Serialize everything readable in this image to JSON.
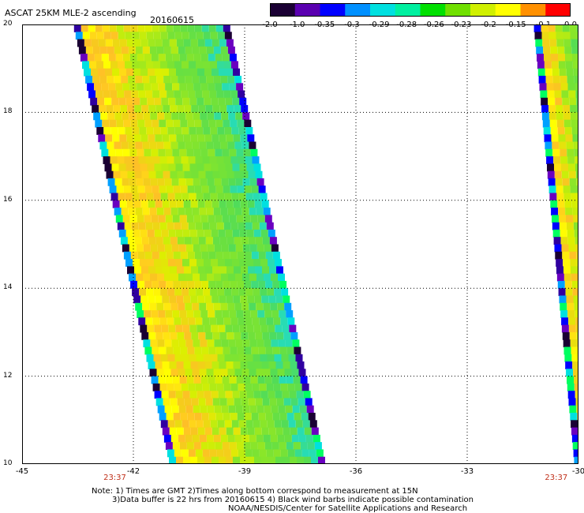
{
  "header": {
    "title": "ASCAT 25KM MLE-2 ascending",
    "date": "20160615"
  },
  "colorbar": {
    "labels": [
      "-2.0",
      "-1.0",
      "-0.35",
      "-0.3",
      "-0.29",
      "-0.28",
      "-0.26",
      "-0.23",
      "-0.2",
      "-0.15",
      "-0.1",
      "0.0"
    ],
    "colors": [
      "#1a0033",
      "#5a00b0",
      "#0000ff",
      "#0090ff",
      "#00e0e0",
      "#00f0a0",
      "#00e000",
      "#70e000",
      "#d0f000",
      "#ffff00",
      "#ff9000",
      "#ff0000"
    ]
  },
  "map": {
    "lat_labels": [
      "20",
      "18",
      "16",
      "14",
      "12",
      "10"
    ],
    "lon_labels": [
      "-45",
      "-42",
      "-39",
      "-36",
      "-33",
      "-30"
    ],
    "lat_range": [
      10,
      20
    ],
    "lon_range": [
      -45,
      -30
    ],
    "gridlines": true,
    "pass_times": [
      {
        "lon": -42.5,
        "label": "23:37"
      },
      {
        "lon": -30.6,
        "label": "23:37"
      }
    ],
    "swaths": [
      {
        "name": "main",
        "west_at_top": -43.6,
        "west_at_bottom": -41.0,
        "width": 4.3
      },
      {
        "name": "edge",
        "west_at_top": -31.2,
        "west_at_bottom": -30.1,
        "width": 1.5
      }
    ]
  },
  "notes": {
    "line1": "Note: 1) Times are GMT 2)Times along bottom correspond to measurement at 15N",
    "line2": "3)Data buffer is 22 hrs from 20160615 4) Black wind barbs indicate possible contamination",
    "line3": "NOAA/NESDIS/Center for Satellite Applications and Research"
  }
}
